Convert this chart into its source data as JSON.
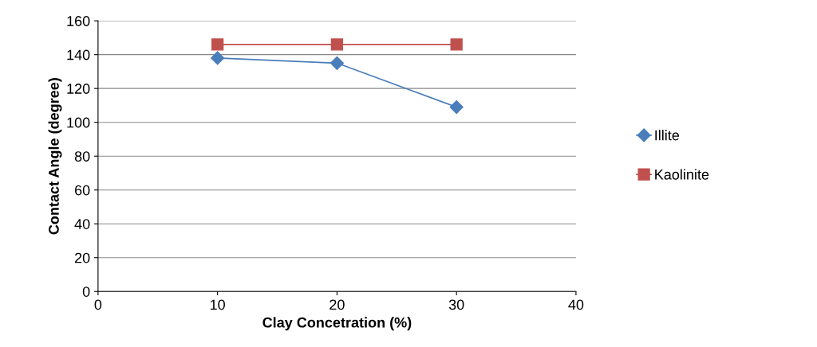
{
  "chart_data": {
    "type": "line",
    "xlabel": "Clay Concetration (%)",
    "ylabel": "Contact Angle (degree)",
    "x": [
      10,
      20,
      30
    ],
    "series": [
      {
        "name": "Illite",
        "color": "#4a7ebb",
        "marker": "diamond",
        "values": [
          138,
          135,
          109
        ]
      },
      {
        "name": "Kaolinite",
        "color": "#c0504d",
        "marker": "square",
        "values": [
          146,
          146,
          146
        ]
      }
    ],
    "xlim": [
      0,
      40
    ],
    "xticks": [
      0,
      10,
      20,
      30,
      40
    ],
    "ylim": [
      0,
      160
    ],
    "yticks": [
      0,
      20,
      40,
      60,
      80,
      100,
      120,
      140,
      160
    ],
    "grid": "y",
    "legend": "right",
    "line_style": "solid"
  }
}
